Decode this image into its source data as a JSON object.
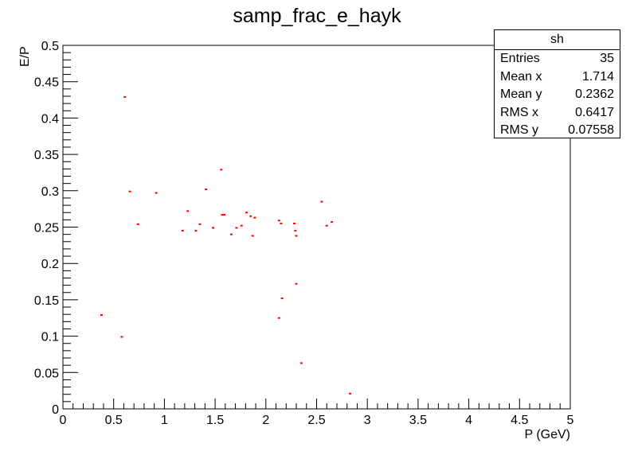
{
  "chart_data": {
    "type": "scatter",
    "title": "samp_frac_e_hayk",
    "xlabel": "P (GeV)",
    "ylabel": "E/P",
    "xlim": [
      0,
      5
    ],
    "ylim": [
      0,
      0.5
    ],
    "grid": false,
    "marker_color": "#ff0000",
    "x_ticks": [
      "0",
      "0.5",
      "1",
      "1.5",
      "2",
      "2.5",
      "3",
      "3.5",
      "4",
      "4.5",
      "5"
    ],
    "y_ticks": [
      "0",
      "0.05",
      "0.1",
      "0.15",
      "0.2",
      "0.25",
      "0.3",
      "0.35",
      "0.4",
      "0.45",
      "0.5"
    ],
    "points": [
      {
        "x": 0.38,
        "y": 0.129
      },
      {
        "x": 0.58,
        "y": 0.099
      },
      {
        "x": 0.61,
        "y": 0.429
      },
      {
        "x": 0.66,
        "y": 0.299
      },
      {
        "x": 0.74,
        "y": 0.254
      },
      {
        "x": 0.92,
        "y": 0.297
      },
      {
        "x": 1.18,
        "y": 0.245
      },
      {
        "x": 1.23,
        "y": 0.272
      },
      {
        "x": 1.31,
        "y": 0.245
      },
      {
        "x": 1.35,
        "y": 0.254
      },
      {
        "x": 1.41,
        "y": 0.302
      },
      {
        "x": 1.48,
        "y": 0.249
      },
      {
        "x": 1.56,
        "y": 0.329
      },
      {
        "x": 1.57,
        "y": 0.267
      },
      {
        "x": 1.59,
        "y": 0.267
      },
      {
        "x": 1.66,
        "y": 0.24
      },
      {
        "x": 1.71,
        "y": 0.249
      },
      {
        "x": 1.76,
        "y": 0.252
      },
      {
        "x": 1.81,
        "y": 0.27
      },
      {
        "x": 1.85,
        "y": 0.265
      },
      {
        "x": 1.87,
        "y": 0.238
      },
      {
        "x": 1.89,
        "y": 0.263
      },
      {
        "x": 2.13,
        "y": 0.125
      },
      {
        "x": 2.13,
        "y": 0.259
      },
      {
        "x": 2.15,
        "y": 0.255
      },
      {
        "x": 2.16,
        "y": 0.152
      },
      {
        "x": 2.28,
        "y": 0.255
      },
      {
        "x": 2.29,
        "y": 0.245
      },
      {
        "x": 2.3,
        "y": 0.238
      },
      {
        "x": 2.3,
        "y": 0.172
      },
      {
        "x": 2.35,
        "y": 0.063
      },
      {
        "x": 2.55,
        "y": 0.285
      },
      {
        "x": 2.6,
        "y": 0.252
      },
      {
        "x": 2.65,
        "y": 0.257
      },
      {
        "x": 2.83,
        "y": 0.021
      }
    ]
  },
  "stats_box": {
    "name": "sh",
    "rows": [
      {
        "label": "Entries",
        "value": "35"
      },
      {
        "label": "Mean x",
        "value": "1.714"
      },
      {
        "label": "Mean y",
        "value": "0.2362"
      },
      {
        "label": "RMS x",
        "value": "0.6417"
      },
      {
        "label": "RMS y",
        "value": "0.07558"
      }
    ]
  }
}
